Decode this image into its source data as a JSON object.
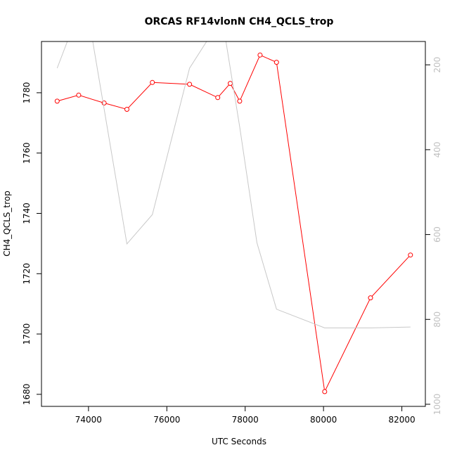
{
  "chart_data": {
    "type": "line",
    "title": "ORCAS RF14vlonN CH4_QCLS_trop",
    "xlabel": "UTC Seconds",
    "ylabel": "CH4_QCLS_trop",
    "xlim": [
      72800,
      82600
    ],
    "ylim": [
      1676,
      1797
    ],
    "y2lim": [
      1005,
      145
    ],
    "y2_reversed": true,
    "grid": false,
    "x_ticks": [
      74000,
      76000,
      78000,
      80000,
      82000
    ],
    "x_tick_labels": [
      "74000",
      "76000",
      "78000",
      "80000",
      "82000"
    ],
    "y_ticks": [
      1680,
      1700,
      1720,
      1740,
      1760,
      1780
    ],
    "y_tick_labels": [
      "1680",
      "1700",
      "1720",
      "1740",
      "1760",
      "1780"
    ],
    "y2_ticks": [
      200,
      400,
      600,
      800,
      1000
    ],
    "y2_tick_labels": [
      "200",
      "400",
      "600",
      "800",
      "1000"
    ],
    "series": [
      {
        "color": "#ff0000",
        "axis": "left",
        "markers": "open-circle",
        "x": [
          73200,
          73750,
          74400,
          74980,
          75630,
          76580,
          77300,
          77620,
          77860,
          78380,
          78800,
          80030,
          81200,
          82220
        ],
        "y": [
          1777.2,
          1779.2,
          1776.6,
          1774.5,
          1783.4,
          1782.8,
          1778.4,
          1783.1,
          1777.2,
          1792.5,
          1790.1,
          1680.9,
          1712.0,
          1726.2
        ]
      },
      {
        "color": "#c8c8c8",
        "axis": "right",
        "markers": "none",
        "x": [
          73200,
          73480,
          74100,
          74980,
          75630,
          76580,
          77050,
          77500,
          77860,
          78300,
          78800,
          80030,
          81200,
          82220
        ],
        "y": [
          208,
          140,
          140,
          622,
          553,
          208,
          140,
          140,
          346,
          619,
          776,
          820,
          820,
          818
        ]
      }
    ]
  }
}
